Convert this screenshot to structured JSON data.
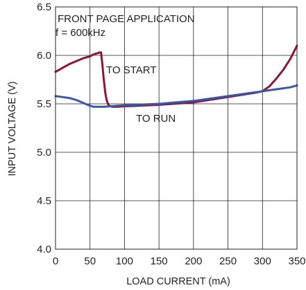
{
  "chart_data": {
    "type": "line",
    "xlabel": "LOAD CURRENT (mA)",
    "ylabel": "INPUT VOLTAGE (V)",
    "xlim": [
      0,
      350
    ],
    "ylim": [
      4.0,
      6.5
    ],
    "xticks": [
      "0",
      "50",
      "100",
      "150",
      "200",
      "250",
      "300",
      "350"
    ],
    "yticks": [
      "4.0",
      "4.5",
      "5.0",
      "5.5",
      "6.0",
      "6.5"
    ],
    "grid": true,
    "annotations": [
      "FRONT PAGE APPLICATION",
      "f = 600kHz",
      "TO START",
      "TO RUN"
    ],
    "series": [
      {
        "name": "TO START",
        "color": "#8b1538",
        "x": [
          0,
          10,
          20,
          30,
          40,
          50,
          55,
          60,
          64,
          66,
          68,
          70,
          72,
          74,
          76,
          78,
          82,
          90,
          100,
          120,
          150,
          200,
          250,
          290,
          300,
          310,
          320,
          330,
          340,
          350
        ],
        "y": [
          5.83,
          5.87,
          5.91,
          5.94,
          5.97,
          5.99,
          6.01,
          6.02,
          6.03,
          6.03,
          5.9,
          5.75,
          5.62,
          5.54,
          5.5,
          5.48,
          5.47,
          5.47,
          5.475,
          5.48,
          5.49,
          5.515,
          5.57,
          5.615,
          5.63,
          5.68,
          5.76,
          5.85,
          5.96,
          6.1
        ]
      },
      {
        "name": "TO RUN",
        "color": "#3b56a4",
        "x": [
          0,
          10,
          20,
          30,
          40,
          50,
          55,
          60,
          70,
          80,
          90,
          100,
          150,
          200,
          250,
          300,
          320,
          340,
          350
        ],
        "y": [
          5.58,
          5.57,
          5.56,
          5.54,
          5.51,
          5.48,
          5.47,
          5.47,
          5.47,
          5.475,
          5.48,
          5.485,
          5.5,
          5.53,
          5.58,
          5.63,
          5.65,
          5.67,
          5.69
        ]
      }
    ]
  }
}
